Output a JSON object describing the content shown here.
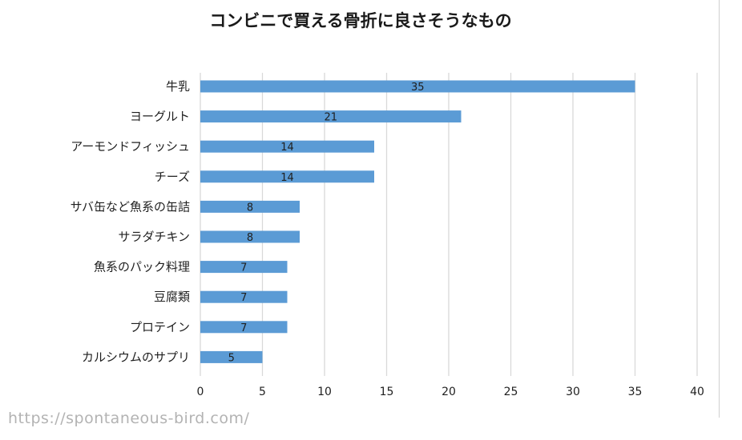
{
  "chart_data": {
    "type": "bar",
    "orientation": "horizontal",
    "title": "コンビニで買える骨折に良さそうなもの",
    "categories": [
      "牛乳",
      "ヨーグルト",
      "アーモンドフィッシュ",
      "チーズ",
      "サバ缶など魚系の缶詰",
      "サラダチキン",
      "魚系のパック料理",
      "豆腐類",
      "プロテイン",
      "カルシウムのサプリ"
    ],
    "values": [
      35,
      21,
      14,
      14,
      8,
      8,
      7,
      7,
      7,
      5
    ],
    "xlim": [
      0,
      40
    ],
    "xticks": [
      0,
      5,
      10,
      15,
      20,
      25,
      30,
      35,
      40
    ],
    "xlabel": "",
    "ylabel": "",
    "grid": true,
    "bar_color": "#5b9bd5"
  },
  "watermark": "https://spontaneous-bird.com/"
}
